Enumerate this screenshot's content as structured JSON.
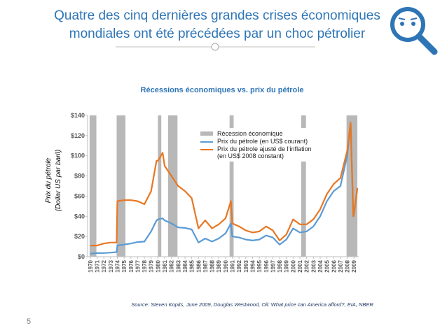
{
  "header": {
    "title": [
      "Quatre des cinq dernières grandes crises économiques",
      "mondiales ont été précédées par un choc pétrolier"
    ]
  },
  "page_number": "5",
  "chart_data": {
    "type": "line",
    "title": "Récessions économiques vs. prix du pétrole",
    "y_label": [
      "Prix du pétrole",
      "(Dollar US par baril)"
    ],
    "source": "Source: Steven Kopits, June 2009, Douglas Westwood, Oil: What price can America afford?, EIA, NBER",
    "recession_label": "Récession économique",
    "recession_color": "#b8b8b8",
    "recessions": [
      [
        1969.9,
        1970.9
      ],
      [
        1973.9,
        1975.2
      ],
      [
        1980,
        1980.5
      ],
      [
        1981.5,
        1982.9
      ],
      [
        1990.6,
        1991.2
      ],
      [
        2001.2,
        2001.9
      ],
      [
        2007.9,
        2009.5
      ]
    ],
    "x": [
      1970,
      1971,
      1972,
      1973,
      1973.9,
      1974,
      1975,
      1976,
      1977,
      1978,
      1979,
      1979.8,
      1980,
      1980.7,
      1981,
      1982,
      1983,
      1984,
      1985,
      1986,
      1987,
      1988,
      1989,
      1990,
      1990.8,
      1991,
      1992,
      1993,
      1994,
      1995,
      1996,
      1997,
      1998,
      1999,
      2000,
      2001,
      2002,
      2003,
      2004,
      2005,
      2006,
      2007,
      2008,
      2008.5,
      2008.9,
      2009,
      2009.5
    ],
    "series": [
      {
        "name": "Prix du pétrole (en US$ courant)",
        "color": "#5b9bd5",
        "values": [
          3,
          3.5,
          3.6,
          4,
          4.5,
          11,
          12,
          13,
          14.5,
          15,
          25,
          36,
          37,
          38,
          36,
          33,
          29,
          28.5,
          27,
          14,
          18,
          15,
          18,
          23,
          33,
          20,
          19,
          17,
          16,
          17,
          21,
          19,
          12,
          17,
          28,
          24,
          25,
          30,
          40,
          55,
          65,
          70,
          100,
          133,
          40,
          42,
          68
        ]
      },
      {
        "name": "Prix du pétrole ajusté de l’inflation (en US$ 2008 constant)",
        "color": "#e87722",
        "values": [
          11,
          11,
          13,
          14,
          14,
          55,
          56,
          56,
          55,
          52,
          65,
          95,
          95,
          103,
          90,
          80,
          70,
          65,
          58,
          28,
          36,
          28,
          32,
          38,
          55,
          33,
          30,
          26,
          24,
          25,
          30,
          26,
          16,
          22,
          37,
          32,
          32,
          37,
          47,
          62,
          72,
          78,
          105,
          133,
          40,
          42,
          68
        ]
      }
    ],
    "xlim": [
      1969.6,
      2009.7
    ],
    "xticks": [
      1970,
      1971,
      1972,
      1973,
      1974,
      1975,
      1976,
      1977,
      1978,
      1979,
      1980,
      1981,
      1982,
      1983,
      1984,
      1985,
      1986,
      1987,
      1988,
      1989,
      1990,
      1991,
      1992,
      1993,
      1994,
      1995,
      1996,
      1997,
      1998,
      1999,
      2000,
      2001,
      2002,
      2003,
      2004,
      2005,
      2006,
      2007,
      2008,
      2009
    ],
    "ylim": [
      0,
      140
    ],
    "yticks": [
      {
        "value": 0,
        "label": "$0"
      },
      {
        "value": 20,
        "label": "$20"
      },
      {
        "value": 40,
        "label": "$40"
      },
      {
        "value": 60,
        "label": "$60"
      },
      {
        "value": 80,
        "label": "$80"
      },
      {
        "value": 100,
        "label": "$100"
      },
      {
        "value": 120,
        "label": "$120"
      },
      {
        "value": 140,
        "label": "$140"
      }
    ],
    "grid": false
  }
}
